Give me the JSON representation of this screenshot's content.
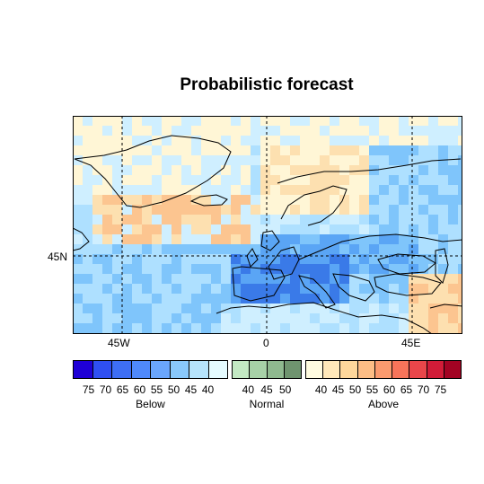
{
  "title": "Probabilistic forecast",
  "axes": {
    "x_ticks": [
      "45W",
      "0",
      "45E"
    ],
    "y_ticks": [
      "45N"
    ]
  },
  "legend": {
    "below": {
      "name": "Below",
      "labels": [
        "75",
        "70",
        "65",
        "60",
        "55",
        "50",
        "45",
        "40"
      ],
      "colors": [
        "#1f00d6",
        "#2f4ff2",
        "#3e6ef4",
        "#4f89fb",
        "#6aa6fd",
        "#89c8fb",
        "#b6e3fb",
        "#e5fbff"
      ]
    },
    "normal": {
      "name": "Normal",
      "labels": [
        "40",
        "45",
        "50"
      ],
      "colors": [
        "#c3e9c3",
        "#a7d1a7",
        "#8fb98f",
        "#6f946f"
      ]
    },
    "above": {
      "name": "Above",
      "labels": [
        "40",
        "45",
        "50",
        "55",
        "60",
        "65",
        "70",
        "75"
      ],
      "colors": [
        "#fffbe0",
        "#ffe8ba",
        "#fed79b",
        "#fdbd85",
        "#fb9a6e",
        "#f7745a",
        "#e9464a",
        "#d11c38",
        "#a30323"
      ]
    }
  },
  "field_colors": {
    "pale_blue": "#cfefff",
    "light_blue": "#aee0ff",
    "blue": "#7fc5fb",
    "mid_blue": "#5aa5f5",
    "dark_blue": "#3a7ae8",
    "cream": "#fff6d6",
    "peach": "#fde0b0",
    "orange": "#fcc590"
  }
}
